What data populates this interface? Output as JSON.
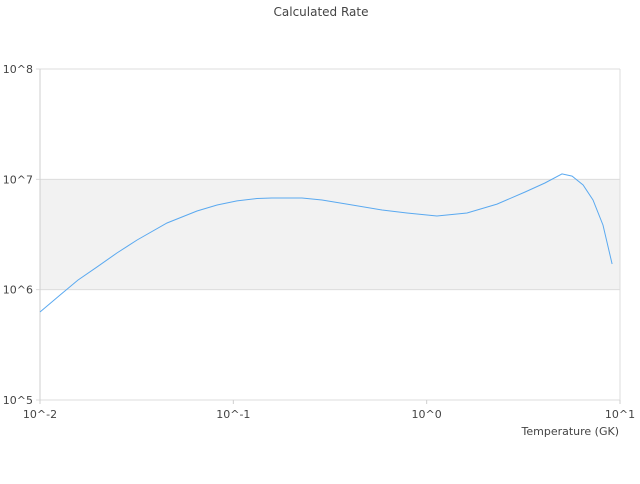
{
  "chart_data": {
    "type": "line",
    "title": "Calculated Rate",
    "xlabel": "Temperature (GK)",
    "ylabel": "",
    "xscale": "log",
    "yscale": "log",
    "xlim": [
      0.01,
      10
    ],
    "ylim": [
      100000,
      100000000
    ],
    "x_ticks": [
      {
        "value": 0.01,
        "label": "10^-2"
      },
      {
        "value": 0.1,
        "label": "10^-1"
      },
      {
        "value": 1,
        "label": "10^0"
      },
      {
        "value": 10,
        "label": "10^1"
      }
    ],
    "y_ticks": [
      {
        "value": 100000,
        "label": "10^5"
      },
      {
        "value": 1000000,
        "label": "10^6"
      },
      {
        "value": 10000000,
        "label": "10^7"
      },
      {
        "value": 100000000,
        "label": "10^8"
      }
    ],
    "grid": "horizontal",
    "band_fill": "#f2f2f2",
    "series": [
      {
        "color": "#5aa9f0",
        "x": [
          0.01,
          0.0127,
          0.0157,
          0.0197,
          0.025,
          0.0318,
          0.0454,
          0.0649,
          0.0824,
          0.1045,
          0.1325,
          0.158,
          0.2265,
          0.2875,
          0.387,
          0.588,
          0.791,
          1.13,
          1.617,
          2.31,
          3.23,
          4.09,
          5.01,
          5.65,
          6.44,
          7.25,
          8.17,
          9.1
        ],
        "y": [
          628000,
          895000,
          1220000,
          1600000,
          2150000,
          2820000,
          4020000,
          5160000,
          5850000,
          6370000,
          6700000,
          6770000,
          6770000,
          6500000,
          5970000,
          5270000,
          4950000,
          4650000,
          4950000,
          5970000,
          7680000,
          9260000,
          11200000,
          10700000,
          8890000,
          6500000,
          3850000,
          1710000
        ]
      }
    ]
  }
}
